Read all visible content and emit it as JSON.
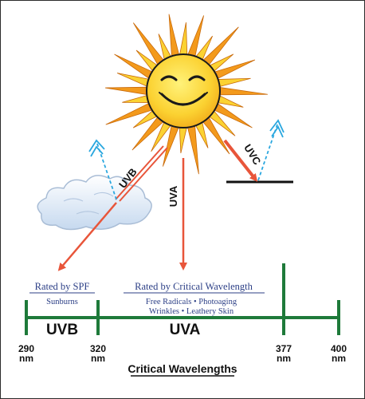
{
  "rays": {
    "uvb_label": "UVB",
    "uva_label": "UVA",
    "uvc_label": "UVC"
  },
  "spf_box": {
    "title": "Rated by SPF",
    "subtitle": "Sunburns"
  },
  "cw_box": {
    "title": "Rated by Critical Wavelength",
    "line1": "Free Radicals • Photoaging",
    "line2": "Wrinkles • Leathery Skin"
  },
  "bands": {
    "uvb": "UVB",
    "uva": "UVA"
  },
  "ticks": [
    {
      "value": "290",
      "unit": "nm"
    },
    {
      "value": "320",
      "unit": "nm"
    },
    {
      "value": "377",
      "unit": "nm"
    },
    {
      "value": "400",
      "unit": "nm"
    }
  ],
  "caption": "Critical Wavelengths",
  "colors": {
    "scale_green": "#1e7a3a",
    "ray_orange": "#e8553a",
    "reflect_blue": "#2aa7df",
    "sun_yellow": "#fbd232",
    "sun_orange": "#f39a1c",
    "text_blue": "#2c3f86"
  }
}
